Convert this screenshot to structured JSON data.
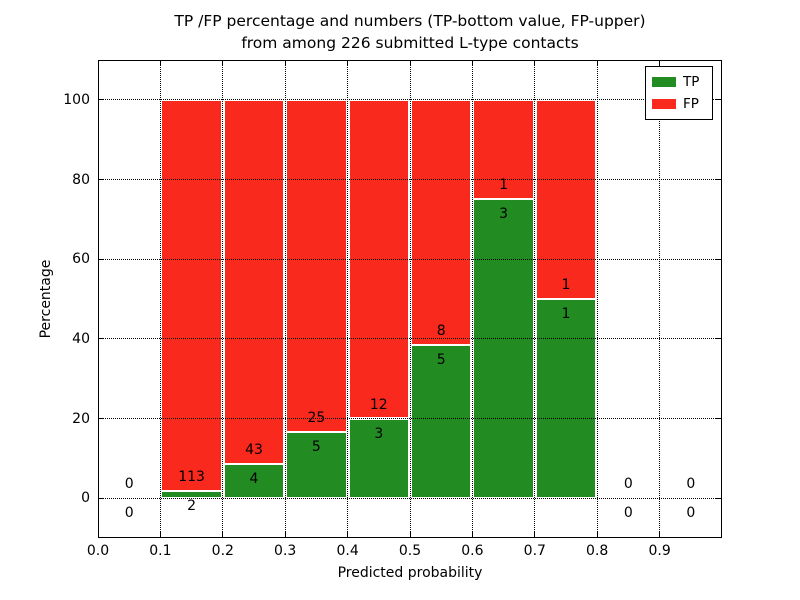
{
  "figure": {
    "title_line1": "TP /FP percentage and numbers (TP-bottom value, FP-upper)",
    "title_line2": "from among 226 submitted L-type contacts",
    "xlabel": "Predicted probability",
    "ylabel": "Percentage",
    "background": "#ffffff"
  },
  "legend": {
    "position": "upper right",
    "entries": [
      {
        "label": "TP",
        "color": "#228b22"
      },
      {
        "label": "FP",
        "color": "#f9291d"
      }
    ]
  },
  "chart_data": {
    "type": "bar",
    "stacked": true,
    "title": "TP /FP percentage and numbers (TP-bottom value, FP-upper) from among 226 submitted L-type contacts",
    "xlabel": "Predicted probability",
    "ylabel": "Percentage",
    "total_contacts": 226,
    "xlim": [
      0.0,
      1.0
    ],
    "ylim": [
      -10,
      110
    ],
    "xticks": [
      "0.0",
      "0.1",
      "0.2",
      "0.3",
      "0.4",
      "0.5",
      "0.6",
      "0.7",
      "0.8",
      "0.9"
    ],
    "yticks": [
      "0",
      "20",
      "40",
      "60",
      "80",
      "100"
    ],
    "grid": true,
    "grid_style": "dotted",
    "legend_position": "upper right",
    "colors": {
      "tp": "#228b22",
      "fp": "#f9291d",
      "edge": "#ffffff"
    },
    "series": [
      {
        "name": "TP",
        "color": "#228b22"
      },
      {
        "name": "FP",
        "color": "#f9291d"
      }
    ],
    "bins": [
      {
        "x_start": 0.0,
        "x_end": 0.1,
        "tp": 0,
        "fp": 0,
        "tp_pct": 0,
        "fp_pct": 0
      },
      {
        "x_start": 0.1,
        "x_end": 0.2,
        "tp": 2,
        "fp": 113,
        "tp_pct": 1.7,
        "fp_pct": 98.3
      },
      {
        "x_start": 0.2,
        "x_end": 0.3,
        "tp": 4,
        "fp": 43,
        "tp_pct": 8.5,
        "fp_pct": 91.5
      },
      {
        "x_start": 0.3,
        "x_end": 0.4,
        "tp": 5,
        "fp": 25,
        "tp_pct": 16.7,
        "fp_pct": 83.3
      },
      {
        "x_start": 0.4,
        "x_end": 0.5,
        "tp": 3,
        "fp": 12,
        "tp_pct": 20.0,
        "fp_pct": 80.0
      },
      {
        "x_start": 0.5,
        "x_end": 0.6,
        "tp": 5,
        "fp": 8,
        "tp_pct": 38.5,
        "fp_pct": 61.5
      },
      {
        "x_start": 0.6,
        "x_end": 0.7,
        "tp": 3,
        "fp": 1,
        "tp_pct": 75.0,
        "fp_pct": 25.0
      },
      {
        "x_start": 0.7,
        "x_end": 0.8,
        "tp": 1,
        "fp": 1,
        "tp_pct": 50.0,
        "fp_pct": 50.0
      },
      {
        "x_start": 0.8,
        "x_end": 0.9,
        "tp": 0,
        "fp": 0,
        "tp_pct": 0,
        "fp_pct": 0
      },
      {
        "x_start": 0.9,
        "x_end": 1.0,
        "tp": 0,
        "fp": 0,
        "tp_pct": 0,
        "fp_pct": 0
      }
    ]
  }
}
